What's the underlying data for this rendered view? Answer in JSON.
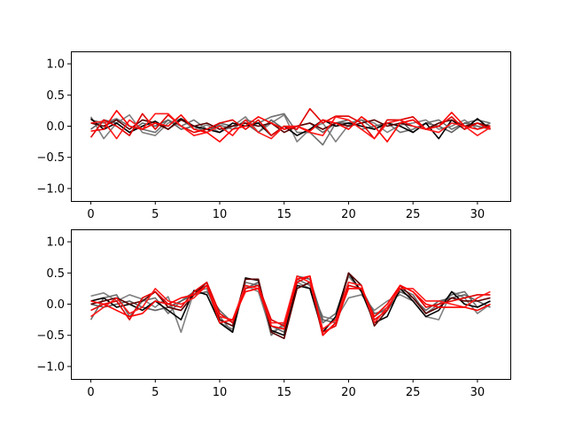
{
  "chart_data": [
    {
      "type": "line",
      "title": "",
      "xlabel": "",
      "ylabel": "",
      "xlim": [
        -1.55,
        32.55
      ],
      "ylim": [
        -1.2,
        1.2
      ],
      "xticks": [
        0,
        5,
        10,
        15,
        20,
        25,
        30
      ],
      "xtick_labels": [
        "0",
        "5",
        "10",
        "15",
        "20",
        "25",
        "30"
      ],
      "yticks": [
        -1.0,
        -0.5,
        0.0,
        0.5,
        1.0
      ],
      "ytick_labels": [
        "−1.0",
        "−0.5",
        "0.0",
        "0.5",
        "1.0"
      ],
      "grid": false,
      "x": [
        0,
        1,
        2,
        3,
        4,
        5,
        6,
        7,
        8,
        9,
        10,
        11,
        12,
        13,
        14,
        15,
        16,
        17,
        18,
        19,
        20,
        21,
        22,
        23,
        24,
        25,
        26,
        27,
        28,
        29,
        30,
        31
      ],
      "series": [
        {
          "color": "#808080",
          "values": [
            0.15,
            -0.2,
            0.05,
            0.18,
            -0.1,
            -0.15,
            0.05,
            0.12,
            -0.05,
            0.02,
            -0.1,
            0.0,
            0.15,
            -0.1,
            0.05,
            0.18,
            -0.25,
            -0.05,
            0.05,
            -0.25,
            0.02,
            0.1,
            0.05,
            -0.1,
            0.02,
            0.05,
            0.1,
            -0.05,
            0.0,
            0.1,
            -0.05,
            0.05
          ]
        },
        {
          "color": "#707070",
          "values": [
            0.1,
            0.05,
            0.12,
            0.0,
            -0.05,
            -0.1,
            0.1,
            0.0,
            0.1,
            -0.05,
            0.02,
            -0.05,
            0.1,
            0.05,
            0.15,
            0.2,
            -0.1,
            -0.1,
            -0.3,
            0.05,
            0.05,
            0.1,
            -0.05,
            0.05,
            -0.1,
            -0.05,
            0.05,
            0.1,
            -0.05,
            0.05,
            0.1,
            0.05
          ]
        },
        {
          "color": "#606060",
          "values": [
            -0.05,
            0.1,
            0.05,
            -0.1,
            0.05,
            0.0,
            0.1,
            -0.05,
            0.0,
            -0.1,
            0.05,
            0.0,
            0.05,
            -0.1,
            0.1,
            -0.05,
            0.0,
            0.05,
            -0.1,
            0.05,
            0.1,
            -0.05,
            0.0,
            0.05,
            0.1,
            -0.1,
            0.05,
            0.0,
            -0.1,
            0.05,
            0.0,
            -0.05
          ]
        },
        {
          "color": "#000000",
          "values": [
            0.12,
            -0.05,
            0.05,
            -0.1,
            0.0,
            0.08,
            -0.05,
            0.12,
            0.0,
            -0.05,
            -0.1,
            0.05,
            0.0,
            0.05,
            -0.15,
            0.0,
            -0.15,
            -0.05,
            0.1,
            0.0,
            0.05,
            0.0,
            -0.05,
            0.05,
            0.0,
            -0.1,
            0.05,
            -0.2,
            0.1,
            -0.05,
            0.12,
            -0.05
          ]
        },
        {
          "color": "#5a0000",
          "values": [
            0.05,
            0.0,
            0.1,
            -0.05,
            0.1,
            0.05,
            -0.05,
            0.1,
            0.0,
            0.05,
            -0.05,
            0.0,
            0.05,
            0.0,
            0.05,
            -0.1,
            0.0,
            0.05,
            -0.05,
            0.05,
            0.0,
            0.05,
            0.1,
            0.0,
            0.05,
            0.0,
            -0.05,
            0.05,
            0.1,
            0.0,
            0.05,
            0.0
          ]
        },
        {
          "color": "#e00000",
          "values": [
            -0.18,
            0.1,
            0.0,
            -0.15,
            0.2,
            -0.05,
            0.18,
            0.0,
            -0.1,
            -0.05,
            0.05,
            0.1,
            -0.05,
            0.1,
            -0.15,
            0.0,
            -0.05,
            0.28,
            0.05,
            0.16,
            0.16,
            0.05,
            -0.2,
            0.1,
            0.1,
            0.15,
            -0.05,
            0.0,
            0.15,
            -0.05,
            0.05,
            -0.05
          ]
        },
        {
          "color": "#ff1a1a",
          "values": [
            0.05,
            0.08,
            -0.2,
            0.1,
            -0.05,
            0.2,
            0.2,
            0.0,
            -0.15,
            -0.1,
            0.0,
            -0.15,
            0.1,
            -0.1,
            -0.2,
            0.0,
            0.0,
            -0.1,
            -0.15,
            0.15,
            0.1,
            -0.05,
            -0.2,
            0.05,
            0.1,
            0.0,
            -0.05,
            -0.1,
            0.05,
            0.0,
            -0.15,
            -0.02
          ]
        },
        {
          "color": "#ff0000",
          "values": [
            -0.08,
            -0.05,
            0.25,
            0.0,
            -0.05,
            0.05,
            0.0,
            0.18,
            -0.05,
            -0.1,
            -0.25,
            -0.05,
            0.0,
            0.15,
            0.05,
            -0.05,
            0.0,
            -0.08,
            0.1,
            0.05,
            -0.05,
            0.15,
            0.0,
            -0.25,
            0.05,
            0.1,
            -0.05,
            0.0,
            0.22,
            0.0,
            -0.05,
            0.0
          ]
        }
      ]
    },
    {
      "type": "line",
      "title": "",
      "xlabel": "",
      "ylabel": "",
      "xlim": [
        -1.55,
        32.55
      ],
      "ylim": [
        -1.2,
        1.2
      ],
      "xticks": [
        0,
        5,
        10,
        15,
        20,
        25,
        30
      ],
      "xtick_labels": [
        "0",
        "5",
        "10",
        "15",
        "20",
        "25",
        "30"
      ],
      "yticks": [
        -1.0,
        -0.5,
        0.0,
        0.5,
        1.0
      ],
      "ytick_labels": [
        "−1.0",
        "−0.5",
        "0.0",
        "0.5",
        "1.0"
      ],
      "grid": false,
      "x": [
        0,
        1,
        2,
        3,
        4,
        5,
        6,
        7,
        8,
        9,
        10,
        11,
        12,
        13,
        14,
        15,
        16,
        17,
        18,
        19,
        20,
        21,
        22,
        23,
        24,
        25,
        26,
        27,
        28,
        29,
        30,
        31
      ],
      "series": [
        {
          "color": "#808080",
          "values": [
            0.13,
            0.18,
            0.05,
            0.15,
            0.08,
            -0.05,
            0.12,
            -0.45,
            0.2,
            0.25,
            -0.3,
            -0.4,
            0.3,
            0.2,
            -0.45,
            -0.35,
            0.35,
            0.25,
            -0.2,
            -0.25,
            0.1,
            0.15,
            -0.1,
            0.05,
            0.15,
            0.05,
            -0.2,
            -0.25,
            0.2,
            0.1,
            -0.15,
            0.0
          ]
        },
        {
          "color": "#707070",
          "values": [
            -0.25,
            0.1,
            0.15,
            -0.2,
            0.05,
            0.1,
            -0.15,
            0.05,
            0.2,
            0.3,
            -0.2,
            -0.45,
            0.35,
            0.3,
            -0.5,
            -0.3,
            0.4,
            0.3,
            -0.3,
            -0.15,
            0.45,
            0.2,
            -0.2,
            -0.05,
            0.25,
            0.15,
            -0.15,
            0.0,
            0.15,
            0.2,
            -0.05,
            0.05
          ]
        },
        {
          "color": "#606060",
          "values": [
            0.0,
            -0.05,
            0.0,
            0.05,
            -0.05,
            -0.1,
            -0.05,
            0.05,
            0.15,
            0.2,
            -0.1,
            -0.3,
            0.25,
            0.35,
            -0.35,
            -0.45,
            0.45,
            0.4,
            -0.25,
            -0.3,
            0.3,
            0.25,
            -0.15,
            -0.1,
            0.2,
            0.1,
            -0.1,
            0.05,
            0.1,
            0.15,
            0.05,
            -0.05
          ]
        },
        {
          "color": "#000000",
          "values": [
            0.05,
            0.1,
            -0.05,
            0.0,
            -0.1,
            0.05,
            -0.1,
            -0.25,
            0.22,
            0.15,
            -0.3,
            -0.45,
            0.42,
            0.38,
            -0.42,
            -0.5,
            0.3,
            0.25,
            -0.45,
            -0.2,
            0.5,
            0.2,
            -0.3,
            -0.2,
            0.25,
            0.05,
            -0.2,
            -0.1,
            0.2,
            0.0,
            -0.05,
            0.05
          ]
        },
        {
          "color": "#5a0000",
          "values": [
            0.0,
            0.05,
            0.1,
            0.0,
            0.05,
            0.2,
            -0.05,
            -0.1,
            0.15,
            0.35,
            -0.25,
            -0.35,
            0.4,
            0.4,
            -0.45,
            -0.55,
            0.25,
            0.35,
            -0.5,
            -0.3,
            0.5,
            0.3,
            -0.35,
            -0.1,
            0.3,
            0.1,
            -0.15,
            -0.05,
            0.1,
            0.05,
            0.05,
            0.1
          ]
        },
        {
          "color": "#e00000",
          "values": [
            -0.1,
            0.0,
            0.05,
            -0.25,
            0.1,
            0.2,
            0.0,
            -0.05,
            0.2,
            0.35,
            -0.15,
            -0.3,
            0.25,
            0.3,
            -0.25,
            -0.35,
            0.35,
            0.45,
            -0.45,
            -0.35,
            0.3,
            0.25,
            -0.25,
            -0.1,
            0.3,
            0.2,
            -0.05,
            0.0,
            0.05,
            0.1,
            0.15,
            0.15
          ]
        },
        {
          "color": "#ff1a1a",
          "values": [
            -0.2,
            -0.05,
            0.1,
            -0.15,
            -0.05,
            0.25,
            0.05,
            0.0,
            0.1,
            0.3,
            -0.2,
            -0.25,
            0.3,
            0.25,
            -0.3,
            -0.3,
            0.45,
            0.35,
            -0.4,
            -0.25,
            0.35,
            0.3,
            -0.3,
            -0.05,
            0.25,
            0.25,
            0.05,
            0.05,
            0.0,
            -0.05,
            0.1,
            0.2
          ]
        },
        {
          "color": "#ff0000",
          "values": [
            0.05,
            0.0,
            -0.1,
            -0.2,
            -0.15,
            0.05,
            0.0,
            0.1,
            0.15,
            0.3,
            -0.3,
            -0.25,
            0.2,
            0.25,
            -0.35,
            -0.4,
            0.4,
            0.45,
            -0.5,
            -0.3,
            0.25,
            0.25,
            -0.2,
            0.0,
            0.3,
            0.2,
            0.0,
            -0.05,
            -0.05,
            -0.05,
            -0.1,
            0.0
          ]
        }
      ]
    }
  ]
}
